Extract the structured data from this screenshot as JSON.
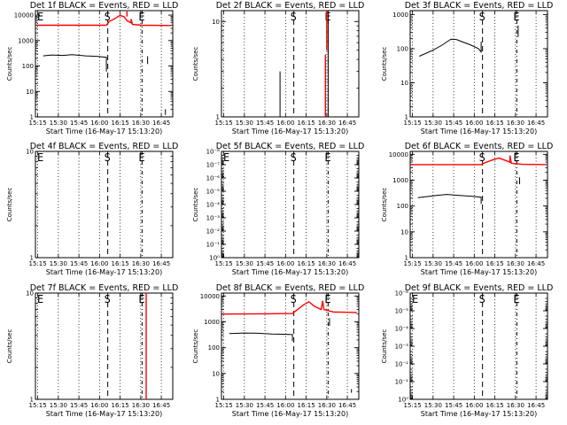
{
  "figure": {
    "colors": {
      "events": "#000000",
      "lld": "#ff0000"
    }
  },
  "chart_data": [
    {
      "type": "line",
      "title": "Det 1f BLACK = Events, RED = LLD",
      "xlabel": "Start Time (16-May-17 15:13:20)",
      "ylabel": "Counts/sec",
      "xlim": [
        "15:13:20",
        "16:53:20"
      ],
      "x_ticks": [
        "15:15",
        "15:30",
        "15:45",
        "16:00",
        "16:15",
        "16:30",
        "16:45"
      ],
      "yscale": "log",
      "ylim": [
        1,
        15000
      ],
      "y_ticks": [
        1,
        10,
        100,
        1000,
        10000
      ],
      "y_tick_labels": [
        "1",
        "10",
        "100",
        "1000",
        "10000"
      ],
      "markers": [
        {
          "label": "E",
          "x": "15:14"
        },
        {
          "label": "S",
          "x": "16:06"
        },
        {
          "label": "E",
          "x": "16:31"
        }
      ],
      "series": [
        {
          "color": "#ff0000",
          "segments": [
            [
              [
                "15:14",
                4000
              ],
              [
                "16:05",
                4000
              ],
              [
                "16:07",
                5600
              ],
              [
                "16:11",
                7200
              ],
              [
                "16:15",
                9800
              ],
              [
                "16:18",
                8500
              ],
              [
                "16:20",
                6000
              ],
              [
                "16:23",
                5000
              ],
              [
                "16:23",
                7000
              ],
              [
                "16:24",
                4300
              ],
              [
                "16:31",
                4000
              ],
              [
                "16:52",
                3900
              ]
            ],
            [
              [
                "16:20",
                8800
              ],
              [
                "16:20",
                14000
              ]
            ]
          ]
        },
        {
          "color": "#000000",
          "segments": [
            [
              [
                "15:19",
                250
              ],
              [
                "15:25",
                270
              ],
              [
                "15:33",
                260
              ],
              [
                "15:40",
                280
              ],
              [
                "15:50",
                250
              ],
              [
                "15:58",
                240
              ],
              [
                "16:05",
                220
              ],
              [
                "16:05",
                60
              ]
            ],
            [
              [
                "16:35",
                240
              ],
              [
                "16:35",
                120
              ]
            ],
            [
              [
                "16:48",
                2.0
              ],
              [
                "16:48",
                1.2
              ]
            ]
          ]
        }
      ]
    },
    {
      "type": "line",
      "title": "Det 2f BLACK = Events, RED = LLD",
      "xlabel": "Start Time (16-May-17 15:13:20)",
      "ylabel": "Counts/sec",
      "xlim": [
        "15:13:20",
        "16:53:20"
      ],
      "x_ticks": [
        "15:15",
        "15:30",
        "15:45",
        "16:00",
        "16:15",
        "16:30",
        "16:45"
      ],
      "yscale": "log",
      "ylim": [
        1,
        13
      ],
      "y_ticks": [
        1,
        10
      ],
      "y_tick_labels": [
        "1",
        "10"
      ],
      "markers": [
        {
          "label": "S",
          "x": "16:06"
        },
        {
          "label": "E",
          "x": "16:31"
        }
      ],
      "series": [
        {
          "color": "#ff0000",
          "segments": [
            [
              [
                "16:30",
                5.0
              ],
              [
                "16:30",
                13
              ]
            ],
            [
              [
                "16:29",
                1
              ],
              [
                "16:29",
                4.5
              ]
            ]
          ]
        },
        {
          "color": "#000000",
          "segments": [
            [
              [
                "15:56",
                1
              ],
              [
                "15:56",
                3.0
              ]
            ],
            [
              [
                "16:31",
                1
              ],
              [
                "16:31",
                13
              ]
            ]
          ]
        }
      ]
    },
    {
      "type": "line",
      "title": "Det 3f BLACK = Events, RED = LLD",
      "xlabel": "Start Time (16-May-17 15:13:20)",
      "ylabel": "Counts/sec",
      "xlim": [
        "15:13:20",
        "16:53:20"
      ],
      "x_ticks": [
        "15:15",
        "15:30",
        "15:45",
        "16:00",
        "16:15",
        "16:30",
        "16:45"
      ],
      "yscale": "log",
      "ylim": [
        1,
        1300
      ],
      "y_ticks": [
        1,
        10,
        100,
        1000
      ],
      "y_tick_labels": [
        "1",
        "10",
        "100",
        "1000"
      ],
      "markers": [
        {
          "label": "S",
          "x": "16:06"
        },
        {
          "label": "E",
          "x": "16:31"
        }
      ],
      "series": [
        {
          "color": "#000000",
          "segments": [
            [
              [
                "15:20",
                60
              ],
              [
                "15:30",
                90
              ],
              [
                "15:37",
                130
              ],
              [
                "15:43",
                190
              ],
              [
                "15:47",
                185
              ],
              [
                "15:51",
                160
              ],
              [
                "15:57",
                130
              ],
              [
                "16:03",
                100
              ],
              [
                "16:05",
                80
              ],
              [
                "16:05",
                160
              ]
            ],
            [
              [
                "16:32",
                480
              ],
              [
                "16:32",
                220
              ]
            ]
          ]
        }
      ]
    },
    {
      "type": "line",
      "title": "Det 4f BLACK = Events, RED = LLD",
      "xlabel": "Start Time (16-May-17 15:13:20)",
      "ylabel": "Counts/sec",
      "xlim": [
        "15:13:20",
        "16:53:20"
      ],
      "x_ticks": [
        "15:15",
        "15:30",
        "15:45",
        "16:00",
        "16:15",
        "16:30",
        "16:45"
      ],
      "yscale": "log",
      "ylim": [
        1,
        10
      ],
      "y_ticks": [
        1,
        10
      ],
      "y_tick_labels": [
        "1",
        "10"
      ],
      "markers": [
        {
          "label": "E",
          "x": "15:14"
        },
        {
          "label": "S",
          "x": "16:06"
        },
        {
          "label": "E",
          "x": "16:31"
        }
      ],
      "series": []
    },
    {
      "type": "line",
      "title": "Det 5f BLACK = Events, RED = LLD",
      "xlabel": "Start Time (16-May-17 15:13:20)",
      "ylabel": "Counts/sec",
      "xlim": [
        "15:13:20",
        "16:53:20"
      ],
      "x_ticks": [
        "15:15",
        "15:30",
        "15:45",
        "16:00",
        "16:15",
        "16:30",
        "16:45"
      ],
      "yscale": "log",
      "ylim": [
        1,
        1e-08
      ],
      "y_ticks": [
        1,
        0.1,
        0.01,
        0.001,
        0.0001,
        1e-05,
        1e-06,
        1e-07,
        1e-08
      ],
      "y_tick_labels": [
        "10⁰",
        "10⁻¹",
        "10⁻²",
        "10⁻³",
        "10⁻⁴",
        "10⁻⁵",
        "10⁻⁶",
        "10⁻⁷",
        "10⁻⁸"
      ],
      "markers": [
        {
          "label": "E",
          "x": "15:14"
        },
        {
          "label": "S",
          "x": "16:06"
        },
        {
          "label": "E",
          "x": "16:31"
        }
      ],
      "series": []
    },
    {
      "type": "line",
      "title": "Det 6f BLACK = Events, RED = LLD",
      "xlabel": "Start Time (16-May-17 15:13:20)",
      "ylabel": "Counts/sec",
      "xlim": [
        "15:13:20",
        "16:53:20"
      ],
      "x_ticks": [
        "15:15",
        "15:30",
        "15:45",
        "16:00",
        "16:15",
        "16:30",
        "16:45"
      ],
      "yscale": "log",
      "ylim": [
        1,
        13000
      ],
      "y_ticks": [
        1,
        10,
        100,
        1000,
        10000
      ],
      "y_tick_labels": [
        "1",
        "10",
        "100",
        "1000",
        "10000"
      ],
      "markers": [
        {
          "label": "S",
          "x": "16:06"
        },
        {
          "label": "E",
          "x": "16:31"
        }
      ],
      "series": [
        {
          "color": "#ff0000",
          "segments": [
            [
              [
                "15:14",
                4000
              ],
              [
                "16:05",
                4000
              ],
              [
                "16:08",
                4800
              ],
              [
                "16:13",
                6000
              ],
              [
                "16:18",
                7200
              ],
              [
                "16:22",
                6000
              ],
              [
                "16:26",
                5000
              ],
              [
                "16:26",
                9000
              ],
              [
                "16:27",
                4500
              ],
              [
                "16:35",
                4100
              ],
              [
                "16:52",
                4000
              ]
            ]
          ]
        },
        {
          "color": "#000000",
          "segments": [
            [
              [
                "15:19",
                210
              ],
              [
                "15:25",
                230
              ],
              [
                "15:33",
                260
              ],
              [
                "15:40",
                280
              ],
              [
                "15:48",
                260
              ],
              [
                "15:58",
                240
              ],
              [
                "16:05",
                220
              ],
              [
                "16:05",
                120
              ]
            ],
            [
              [
                "16:33",
                1300
              ],
              [
                "16:33",
                700
              ]
            ]
          ]
        }
      ]
    },
    {
      "type": "line",
      "title": "Det 7f BLACK = Events, RED = LLD",
      "xlabel": "Start Time (16-May-17 15:13:20)",
      "ylabel": "Counts/sec",
      "xlim": [
        "15:13:20",
        "16:53:20"
      ],
      "x_ticks": [
        "15:15",
        "15:30",
        "15:45",
        "16:00",
        "16:15",
        "16:30",
        "16:45"
      ],
      "yscale": "log",
      "ylim": [
        1,
        10
      ],
      "y_ticks": [
        1,
        10
      ],
      "y_tick_labels": [
        "1",
        "10"
      ],
      "markers": [
        {
          "label": "E",
          "x": "15:14"
        },
        {
          "label": "S",
          "x": "16:06"
        },
        {
          "label": "E",
          "x": "16:31"
        }
      ],
      "series": [
        {
          "color": "#ff0000",
          "segments": [
            [
              [
                "16:34",
                1
              ],
              [
                "16:34",
                10
              ]
            ]
          ]
        }
      ]
    },
    {
      "type": "line",
      "title": "Det 8f BLACK = Events, RED = LLD",
      "xlabel": "Start Time (16-May-17 15:13:20)",
      "ylabel": "Counts/sec",
      "xlim": [
        "15:13:20",
        "16:53:20"
      ],
      "x_ticks": [
        "15:15",
        "15:30",
        "15:45",
        "16:00",
        "16:15",
        "16:30",
        "16:45"
      ],
      "yscale": "log",
      "ylim": [
        1,
        13000
      ],
      "y_ticks": [
        1,
        10,
        100,
        1000,
        10000
      ],
      "y_tick_labels": [
        "1",
        "10",
        "100",
        "1000",
        "10000"
      ],
      "markers": [
        {
          "label": "S",
          "x": "16:06"
        },
        {
          "label": "E",
          "x": "16:31"
        }
      ],
      "series": [
        {
          "color": "#ff0000",
          "segments": [
            [
              [
                "15:14",
                2000
              ],
              [
                "15:45",
                2050
              ],
              [
                "16:05",
                2100
              ],
              [
                "16:08",
                2800
              ],
              [
                "16:13",
                4500
              ],
              [
                "16:17",
                6000
              ],
              [
                "16:21",
                4000
              ],
              [
                "16:26",
                3000
              ],
              [
                "16:27",
                6500
              ],
              [
                "16:28",
                3000
              ],
              [
                "16:35",
                2400
              ],
              [
                "16:52",
                2300
              ]
            ]
          ]
        },
        {
          "color": "#000000",
          "segments": [
            [
              [
                "15:19",
                350
              ],
              [
                "15:30",
                370
              ],
              [
                "15:40",
                360
              ],
              [
                "15:50",
                340
              ],
              [
                "15:58",
                330
              ],
              [
                "16:05",
                320
              ],
              [
                "16:05",
                180
              ]
            ],
            [
              [
                "16:32",
                1400
              ],
              [
                "16:32",
                700
              ]
            ],
            [
              [
                "16:48",
                2.5
              ],
              [
                "16:48",
                1.8
              ]
            ]
          ]
        }
      ]
    },
    {
      "type": "line",
      "title": "Det 9f BLACK = Events, RED = LLD",
      "xlabel": "Start Time (16-May-17 15:13:20)",
      "ylabel": "Counts/sec",
      "xlim": [
        "15:13:20",
        "16:53:20"
      ],
      "x_ticks": [
        "15:15",
        "15:30",
        "15:45",
        "16:00",
        "16:15",
        "16:30",
        "16:45"
      ],
      "yscale": "log",
      "ylim": [
        1,
        1e-06
      ],
      "y_ticks": [
        1,
        0.1,
        0.01,
        0.001,
        0.0001,
        1e-05,
        1e-06
      ],
      "y_tick_labels": [
        "10⁰",
        "10⁻¹",
        "10⁻²",
        "10⁻³",
        "10⁻⁴",
        "10⁻⁵",
        "10⁻⁶"
      ],
      "y_labeled_ticks": [
        1,
        0.1,
        0.01,
        0.001,
        0.0001,
        1e-05,
        1e-06
      ],
      "markers": [
        {
          "label": "E",
          "x": "15:14"
        },
        {
          "label": "S",
          "x": "16:06"
        },
        {
          "label": "E",
          "x": "16:31"
        }
      ],
      "series": []
    }
  ]
}
